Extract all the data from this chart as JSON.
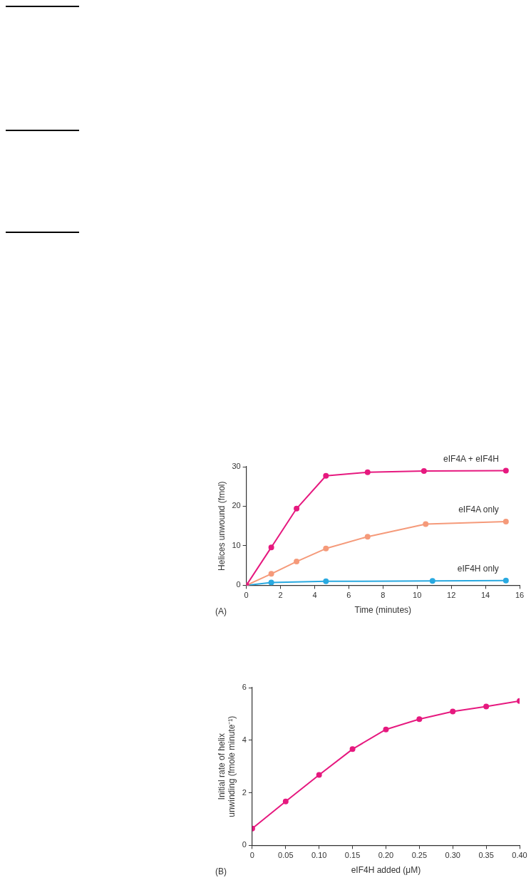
{
  "chart_data": [
    {
      "type": "line",
      "xlabel": "Time (minutes)",
      "ylabel": "Helices unwound (fmol)",
      "annotations": [
        "(A)"
      ],
      "xlim": [
        0,
        16
      ],
      "xticks": [
        0,
        2,
        4,
        6,
        8,
        10,
        12,
        14,
        16
      ],
      "ylim": [
        0,
        30
      ],
      "yticks": [
        0,
        10,
        20,
        30
      ],
      "grid": false,
      "legend": false,
      "marker": "circle",
      "line_style": "solid",
      "series": [
        {
          "name": "eIF4A + eIF4H",
          "color": "#e6197f",
          "x": [
            0,
            1.46,
            2.94,
            4.66,
            7.1,
            10.4,
            15.2
          ],
          "values": [
            0,
            9.6,
            19.4,
            27.7,
            28.6,
            28.9,
            29.0
          ]
        },
        {
          "name": "eIF4A only",
          "color": "#f59a7a",
          "x": [
            0,
            1.46,
            2.94,
            4.66,
            7.1,
            10.5,
            15.2
          ],
          "values": [
            0,
            2.9,
            6.0,
            9.3,
            12.3,
            15.5,
            16.1
          ]
        },
        {
          "name": "eIF4H only",
          "color": "#29a9e0",
          "x": [
            0,
            1.46,
            4.66,
            10.9,
            15.2
          ],
          "values": [
            0,
            0.7,
            1.0,
            1.1,
            1.2
          ]
        }
      ]
    },
    {
      "type": "line",
      "xlabel": "eIF4H added (μM)",
      "ylabel": "Initial rate of helix unwinding (fmole minute⁻¹)",
      "annotations": [
        "(B)"
      ],
      "xlim": [
        0,
        0.4
      ],
      "xticks": [
        0,
        0.05,
        {
          "value": 0.1,
          "label": "0.10"
        },
        0.15,
        {
          "value": 0.2,
          "label": "0.20"
        },
        0.25,
        {
          "value": 0.3,
          "label": "0.30"
        },
        0.35,
        {
          "value": 0.4,
          "label": "0.40"
        }
      ],
      "ylim": [
        0,
        6
      ],
      "yticks": [
        0,
        2,
        4,
        6
      ],
      "grid": false,
      "legend": false,
      "marker": "circle",
      "line_style": "solid",
      "series": [
        {
          "color": "#e6197f",
          "x": [
            0,
            0.05,
            0.1,
            0.15,
            0.2,
            0.25,
            0.3,
            0.35,
            0.4
          ],
          "values": [
            0.64,
            1.67,
            2.68,
            3.66,
            4.41,
            4.8,
            5.09,
            5.28,
            5.49
          ]
        }
      ]
    }
  ]
}
